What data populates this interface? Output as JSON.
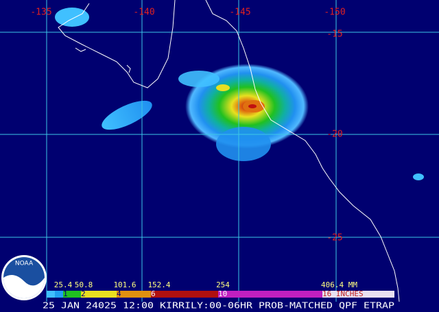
{
  "map": {
    "longitude_labels": [
      "-135",
      "-140",
      "-145",
      "-150"
    ],
    "latitude_labels": [
      "-15",
      "-20",
      "-25"
    ],
    "logo": "NOAA",
    "legend": {
      "mm_labels": [
        "25.4",
        "50.8",
        "101.6",
        "152.4",
        "254",
        "406.4 MM"
      ],
      "inch_labels": [
        "1",
        "2",
        "4",
        "6",
        "10",
        "16 INCHES"
      ]
    },
    "footer": "25 JAN 24025 12:00 KIRRILY:00-06HR PROB-MATCHED QPF ETRAP"
  }
}
